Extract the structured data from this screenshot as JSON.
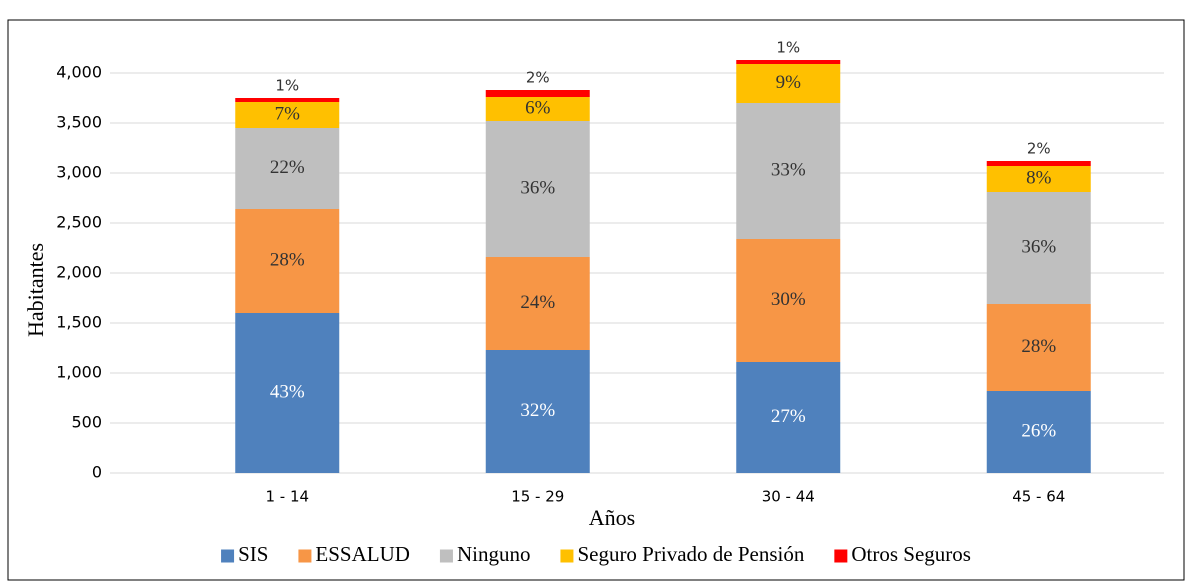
{
  "chart_data": {
    "type": "stacked_bar",
    "categories": [
      "1 - 14",
      "15 - 29",
      "30 - 44",
      "45 - 64"
    ],
    "series": [
      {
        "name": "SIS",
        "color": "#4f81bd",
        "values": [
          1600,
          1230,
          1110,
          820
        ],
        "value_labels": [
          "43%",
          "32%",
          "27%",
          "26%"
        ]
      },
      {
        "name": "ESSALUD",
        "color": "#f79646",
        "values": [
          1040,
          930,
          1230,
          870
        ],
        "value_labels": [
          "28%",
          "24%",
          "30%",
          "28%"
        ]
      },
      {
        "name": "Ninguno",
        "color": "#bfbfbf",
        "values": [
          810,
          1360,
          1360,
          1120
        ],
        "value_labels": [
          "22%",
          "36%",
          "33%",
          "36%"
        ]
      },
      {
        "name": "Seguro Privado de Pensión",
        "color": "#ffc000",
        "values": [
          260,
          240,
          390,
          260
        ],
        "value_labels": [
          "7%",
          "6%",
          "9%",
          "8%"
        ]
      },
      {
        "name": "Otros Seguros",
        "color": "#ff0000",
        "values": [
          40,
          70,
          40,
          50
        ],
        "value_labels": [
          "1%",
          "2%",
          "1%",
          "2%"
        ]
      }
    ],
    "x_label": "Años",
    "y_label": "Habitantes",
    "ylim": [
      0,
      4000
    ],
    "yticks": [
      0,
      500,
      {
        "value": 1000,
        "label": "1,000"
      },
      {
        "value": 1500,
        "label": "1,500"
      },
      {
        "value": 2000,
        "label": "2,000"
      },
      {
        "value": 2500,
        "label": "2,500"
      },
      {
        "value": 3000,
        "label": "3,000"
      },
      {
        "value": 3500,
        "label": "3,500"
      },
      {
        "value": 4000,
        "label": "4,000"
      }
    ],
    "grid": true,
    "legend": "bottom"
  }
}
